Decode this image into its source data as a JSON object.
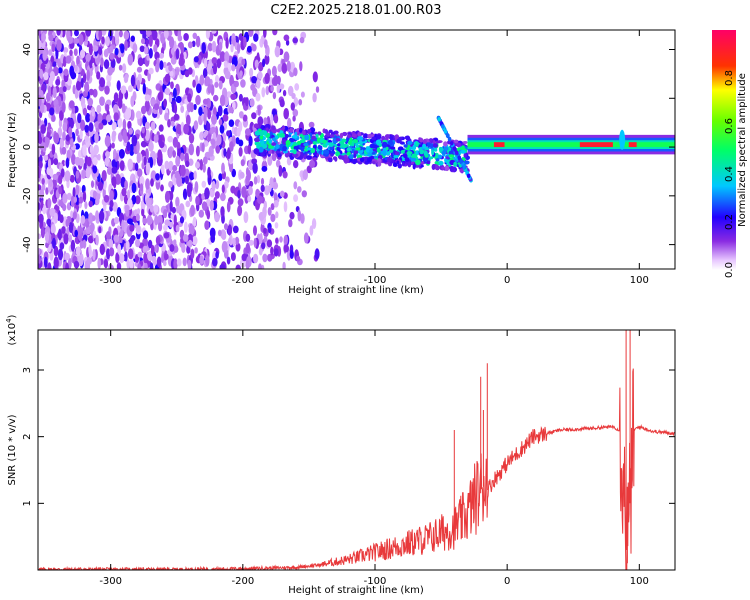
{
  "figure_title": "C2E2.2025.218.01.00.R03",
  "colorbar": {
    "label": "Normalized spectral amplitude",
    "ticks": [
      "0.0",
      "0.2",
      "0.4",
      "0.6",
      "0.8"
    ],
    "range": [
      0,
      1
    ]
  },
  "chart_data": [
    {
      "type": "heatmap",
      "title": "",
      "xlabel": "Height of straight line (km)",
      "ylabel": "Frequency (Hz)",
      "xlim": [
        -355,
        127
      ],
      "ylim": [
        -50,
        48
      ],
      "x_ticks": [
        "-300",
        "-200",
        "-100",
        "0",
        "100"
      ],
      "y_ticks": [
        "-40",
        "-20",
        "0",
        "20",
        "40"
      ],
      "colormap": "rainbow (purple → blue → cyan → green → yellow → red)",
      "regions": [
        {
          "description": "broadband scattered noise",
          "x_range": [
            -355,
            -145
          ],
          "y_range": [
            -50,
            48
          ],
          "amplitude": "low (0.0–0.2)"
        },
        {
          "description": "signal band",
          "x_range": [
            -190,
            -30
          ],
          "center_frequency": 0,
          "width_hz": 12,
          "amplitude": "0.2–0.5"
        },
        {
          "description": "narrow carrier line",
          "x_range": [
            -30,
            127
          ],
          "center_frequency": 1,
          "width_hz": 4,
          "amplitude": "0.4–1.0"
        },
        {
          "description": "peak amplitude segments",
          "x_ranges": [
            [
              -10,
              -2
            ],
            [
              55,
              80
            ],
            [
              92,
              98
            ]
          ],
          "frequency": 1,
          "amplitude": "≈1.0"
        }
      ]
    },
    {
      "type": "line",
      "title": "",
      "xlabel": "Height of straight line (km)",
      "ylabel": "SNR (10 * v/v)",
      "ylabel_multiplier": "(x10",
      "ylabel_multiplier_exponent": "4",
      "ylabel_multiplier_close": ")",
      "xlim": [
        -355,
        127
      ],
      "ylim": [
        0,
        3.6
      ],
      "x_ticks": [
        "-300",
        "-200",
        "-100",
        "0",
        "100"
      ],
      "y_ticks": [
        "1",
        "2",
        "3"
      ],
      "series_color": "#e8393b",
      "series": [
        {
          "name": "",
          "x": [
            -355,
            -250,
            -200,
            -160,
            -140,
            -120,
            -100,
            -80,
            -60,
            -40,
            -30,
            -25,
            -20,
            -17,
            -15,
            -10,
            0,
            10,
            20,
            40,
            60,
            80,
            85,
            88,
            90,
            92,
            94,
            96,
            100,
            110,
            127
          ],
          "y": [
            0.01,
            0.01,
            0.02,
            0.04,
            0.08,
            0.15,
            0.25,
            0.35,
            0.45,
            0.6,
            0.8,
            1.0,
            1.15,
            1.3,
            1.2,
            1.35,
            1.6,
            1.8,
            2.0,
            2.1,
            2.12,
            2.15,
            2.1,
            1.5,
            0.3,
            0.5,
            1.5,
            2.1,
            2.15,
            2.08,
            2.05
          ]
        }
      ],
      "spikes": [
        {
          "x": -40,
          "y": 2.1
        },
        {
          "x": -20,
          "y": 2.9
        },
        {
          "x": -18,
          "y": 2.4
        },
        {
          "x": -15,
          "y": 3.1
        },
        {
          "x": 90,
          "y": 3.6
        },
        {
          "x": 91,
          "y": 0.1
        },
        {
          "x": 93,
          "y": 3.6
        }
      ]
    }
  ]
}
